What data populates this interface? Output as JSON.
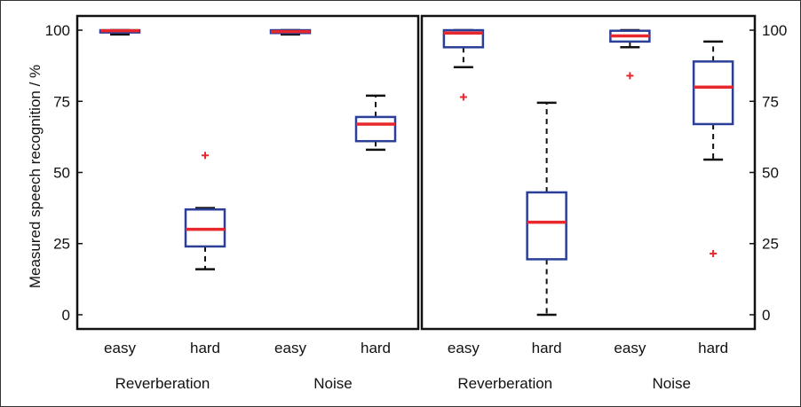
{
  "chart_data": {
    "type": "boxplot",
    "ylabel": "Measured speech recognition / %",
    "ylim": [
      -5,
      105
    ],
    "yticks": [
      0,
      25,
      50,
      75,
      100
    ],
    "grid": false,
    "colors": {
      "box": "#2b3f99",
      "median": "#e8282c",
      "whisker": "#111111",
      "outlier": "#e8282c"
    },
    "panels": [
      {
        "y_axis_side": "left",
        "groups": [
          "Reverberation",
          "Noise"
        ],
        "categories": [
          "easy",
          "hard",
          "easy",
          "hard"
        ],
        "boxes": [
          {
            "group": "Reverberation",
            "category": "easy",
            "whisker_low": 98.5,
            "q1": 99.2,
            "median": 99.8,
            "q3": 100,
            "whisker_high": 100,
            "outliers": []
          },
          {
            "group": "Reverberation",
            "category": "hard",
            "whisker_low": 16,
            "q1": 24,
            "median": 30,
            "q3": 37,
            "whisker_high": 37.5,
            "outliers": [
              56
            ]
          },
          {
            "group": "Noise",
            "category": "easy",
            "whisker_low": 98.5,
            "q1": 99,
            "median": 99.5,
            "q3": 100,
            "whisker_high": 100,
            "outliers": []
          },
          {
            "group": "Noise",
            "category": "hard",
            "whisker_low": 58,
            "q1": 61,
            "median": 67,
            "q3": 69.5,
            "whisker_high": 77,
            "outliers": []
          }
        ]
      },
      {
        "y_axis_side": "right",
        "groups": [
          "Reverberation",
          "Noise"
        ],
        "categories": [
          "easy",
          "hard",
          "easy",
          "hard"
        ],
        "boxes": [
          {
            "group": "Reverberation",
            "category": "easy",
            "whisker_low": 87,
            "q1": 94,
            "median": 99,
            "q3": 100,
            "whisker_high": 100,
            "outliers": [
              76.5
            ]
          },
          {
            "group": "Reverberation",
            "category": "hard",
            "whisker_low": 0,
            "q1": 19.5,
            "median": 32.5,
            "q3": 43,
            "whisker_high": 74.5,
            "outliers": []
          },
          {
            "group": "Noise",
            "category": "easy",
            "whisker_low": 94,
            "q1": 96,
            "median": 98,
            "q3": 99.8,
            "whisker_high": 100,
            "outliers": [
              84
            ]
          },
          {
            "group": "Noise",
            "category": "hard",
            "whisker_low": 54.5,
            "q1": 67,
            "median": 80,
            "q3": 89,
            "whisker_high": 96,
            "outliers": [
              21.5
            ]
          }
        ]
      }
    ]
  }
}
